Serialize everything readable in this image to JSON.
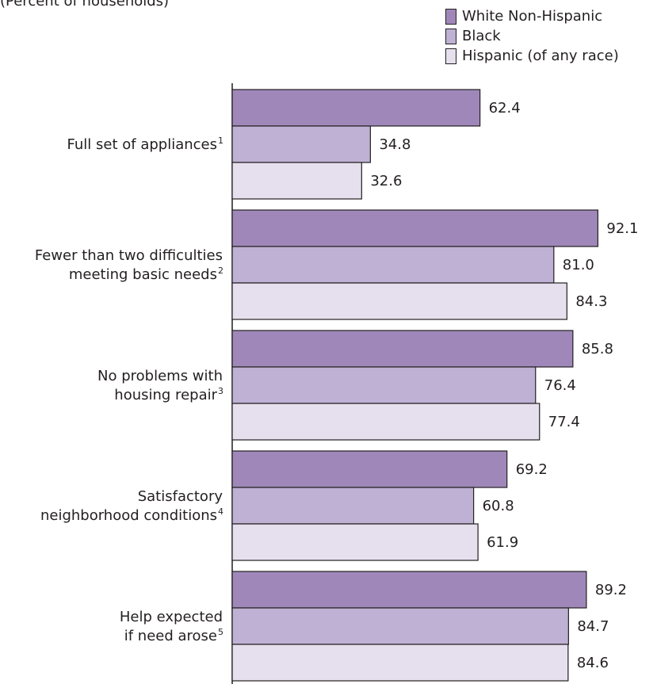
{
  "subtitle": "(Percent of households)",
  "colors": {
    "white": "#9f88b9",
    "black": "#bfb1d4",
    "hispanic": "#e6e0ee",
    "outline": "#231f20"
  },
  "chart_data": {
    "type": "bar",
    "orientation": "horizontal",
    "ylabel": "(Percent of households)",
    "xlim": [
      0,
      100
    ],
    "legend": "top-right",
    "grid": false,
    "categories": [
      {
        "label_lines": [
          "Full set of appliances"
        ],
        "footnote": "1"
      },
      {
        "label_lines": [
          "Fewer than two difficulties",
          "meeting basic needs"
        ],
        "footnote": "2"
      },
      {
        "label_lines": [
          "No problems with",
          "housing repair"
        ],
        "footnote": "3"
      },
      {
        "label_lines": [
          "Satisfactory",
          "neighborhood conditions"
        ],
        "footnote": "4"
      },
      {
        "label_lines": [
          "Help expected",
          "if need arose"
        ],
        "footnote": "5"
      }
    ],
    "series": [
      {
        "name": "White Non-Hispanic",
        "color": "#9f88b9",
        "values": [
          62.4,
          92.1,
          85.8,
          69.2,
          89.2
        ],
        "labels": [
          "62.4",
          "92.1",
          "85.8",
          "69.2",
          "89.2"
        ]
      },
      {
        "name": "Black",
        "color": "#bfb1d4",
        "values": [
          34.8,
          81.0,
          76.4,
          60.8,
          84.7
        ],
        "labels": [
          "34.8",
          "81.0",
          "76.4",
          "60.8",
          "84.7"
        ]
      },
      {
        "name": "Hispanic (of any race)",
        "color": "#e6e0ee",
        "values": [
          32.6,
          84.3,
          77.4,
          61.9,
          84.6
        ],
        "labels": [
          "32.6",
          "84.3",
          "77.4",
          "61.9",
          "84.6"
        ]
      }
    ]
  }
}
